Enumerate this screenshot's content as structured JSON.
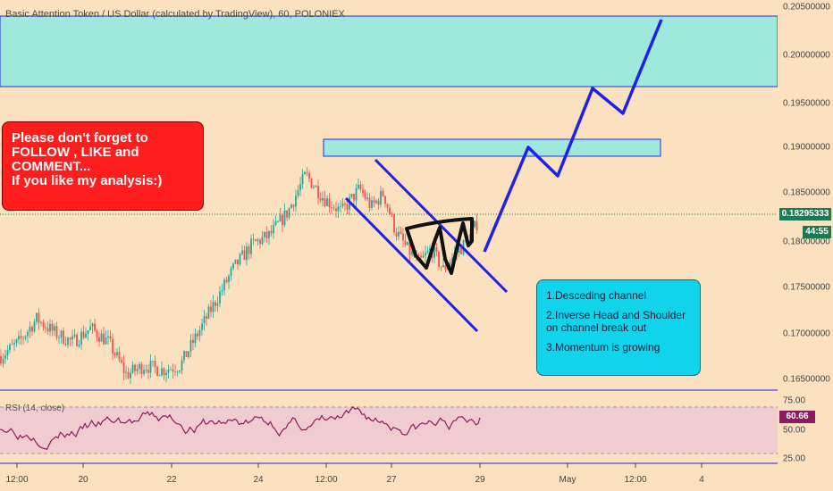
{
  "header": {
    "title": "Basic Attention Token / US Dollar (calculated by TradingView), 60, POLONIEX"
  },
  "colors": {
    "background": "#fbe1c0",
    "bull": "#26a69a",
    "bear": "#ef5350",
    "zone_fill": "#9ee9dc",
    "drawing_blue": "#1e22e6",
    "rsi_line": "#8e1b5e",
    "rsi_band": "#f0ccd0",
    "price_tag": "#1c7a52",
    "rsi_tag": "#8e1b5e"
  },
  "notes": {
    "red": {
      "line1": "Please don't forget  to",
      "line2": "FOLLOW , LIKE and",
      "line3": "COMMENT...",
      "line4": "If you like my analysis:)"
    },
    "cyan": {
      "item1": "1.Desceding channel",
      "item2a": "2.Inverse Head and Shoulder",
      "item2b": "on channel break out",
      "item3": "3.Momentum is growing"
    }
  },
  "tags": {
    "price": "0.18295333",
    "countdown": "44:55",
    "rsi": "60.66"
  },
  "chart_data": [
    {
      "type": "candlestick",
      "title": "Basic Attention Token / US Dollar (calculated by TradingView), 60, POLONIEX",
      "y_ticks": [
        "0.20500000",
        "0.20000000",
        "0.19500000",
        "0.19000000",
        "0.18500000",
        "0.18000000",
        "0.17500000",
        "0.17000000",
        "0.16500000"
      ],
      "x_ticks": [
        "12:00",
        "20",
        "22",
        "24",
        "12:00",
        "27",
        "29",
        "May",
        "12:00",
        "4"
      ],
      "ylim": [
        0.1637,
        0.2062
      ],
      "last_price": 0.18295333,
      "price_path": [
        [
          0,
          0.1675
        ],
        [
          3,
          0.169
        ],
        [
          6,
          0.1715
        ],
        [
          9,
          0.17
        ],
        [
          12,
          0.169
        ],
        [
          15,
          0.1705
        ],
        [
          18,
          0.169
        ],
        [
          21,
          0.1655
        ],
        [
          24,
          0.1665
        ],
        [
          27,
          0.166
        ],
        [
          30,
          0.1665
        ],
        [
          33,
          0.17
        ],
        [
          36,
          0.1735
        ],
        [
          39,
          0.177
        ],
        [
          42,
          0.1795
        ],
        [
          45,
          0.1805
        ],
        [
          48,
          0.183
        ],
        [
          51,
          0.187
        ],
        [
          54,
          0.1845
        ],
        [
          57,
          0.183
        ],
        [
          60,
          0.1855
        ],
        [
          62,
          0.1835
        ],
        [
          64,
          0.185
        ],
        [
          66,
          0.181
        ],
        [
          68,
          0.179
        ],
        [
          70,
          0.1775
        ],
        [
          72,
          0.179
        ],
        [
          74,
          0.1768
        ],
        [
          76,
          0.1785
        ],
        [
          78,
          0.1798
        ],
        [
          80,
          0.1822
        ]
      ],
      "zones": [
        {
          "y_top": 0.2043,
          "y_bottom": 0.1965
        },
        {
          "y_top": 0.1909,
          "y_bottom": 0.1891
        }
      ]
    },
    {
      "type": "line",
      "title": "RSI (14, close)",
      "y_ticks": [
        "75.00",
        "50.00",
        "25.00"
      ],
      "ylim": [
        20,
        80
      ],
      "band": [
        30,
        70
      ],
      "last_value": 60.66
    }
  ]
}
